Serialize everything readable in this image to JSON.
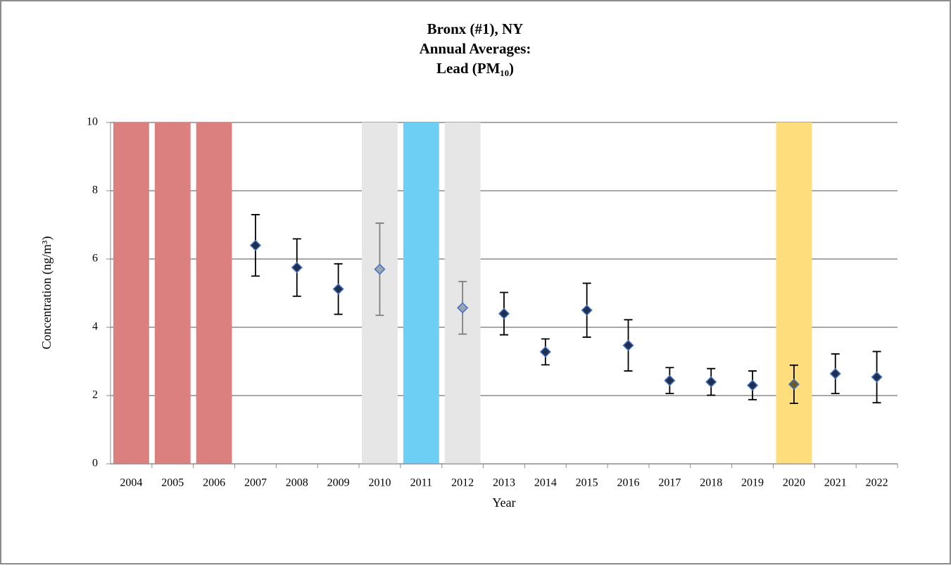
{
  "chart_data": {
    "type": "scatter",
    "title": [
      "Bronx (#1), NY",
      "Annual Averages:",
      "Lead (PM₁₀)"
    ],
    "x_label": "Year",
    "y_label": "Concentration (ng/m³)",
    "categories": [
      "2004",
      "2005",
      "2006",
      "2007",
      "2008",
      "2009",
      "2010",
      "2011",
      "2012",
      "2013",
      "2014",
      "2015",
      "2016",
      "2017",
      "2018",
      "2019",
      "2020",
      "2021",
      "2022"
    ],
    "values": [
      null,
      null,
      null,
      6.4,
      5.75,
      5.12,
      5.7,
      null,
      4.57,
      4.4,
      3.28,
      4.5,
      3.47,
      2.44,
      2.4,
      2.3,
      2.33,
      2.64,
      2.54
    ],
    "errors": [
      null,
      null,
      null,
      0.9,
      0.84,
      0.74,
      1.35,
      null,
      0.77,
      0.62,
      0.38,
      0.79,
      0.75,
      0.38,
      0.39,
      0.42,
      0.56,
      0.58,
      0.75
    ],
    "marker_colors": [
      null,
      null,
      null,
      "#1f2f4f",
      "#1f2f4f",
      "#1f2f4f",
      "#9aa3b3",
      null,
      "#9aa3b3",
      "#1f2f4f",
      "#1f2f4f",
      "#1f2f4f",
      "#1f2f4f",
      "#1f2f4f",
      "#1f2f4f",
      "#1f2f4f",
      "#6b5a2a",
      "#1f2f4f",
      "#1f2f4f"
    ],
    "highlight_colors": [
      "#dc7f7f",
      "#dc7f7f",
      "#dc7f7f",
      null,
      null,
      null,
      "#e6e6e6",
      "#6ccff3",
      "#e6e6e6",
      null,
      null,
      null,
      null,
      null,
      null,
      null,
      "#fedd7c",
      null,
      null
    ],
    "ylim": [
      0,
      10
    ],
    "yticks": [
      0,
      2,
      4,
      6,
      8,
      10
    ],
    "grid": true
  }
}
